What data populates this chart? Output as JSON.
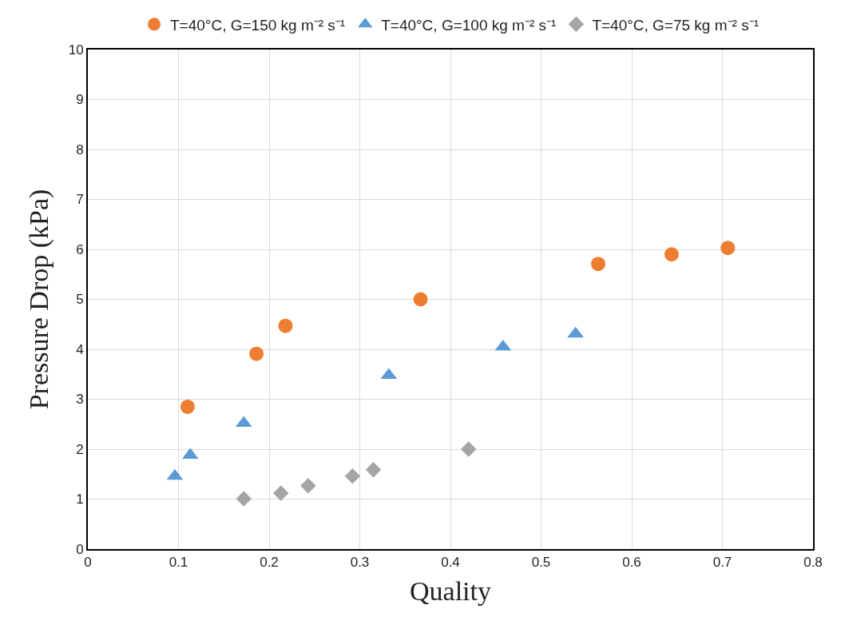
{
  "chart_data": {
    "type": "scatter",
    "xlabel": "Quality",
    "ylabel": "Pressure Drop (kPa)",
    "xlim": [
      0,
      0.8
    ],
    "xticks": [
      0,
      0.1,
      0.2,
      0.3,
      0.4,
      0.5,
      0.6,
      0.7,
      0.8
    ],
    "ylim": [
      0,
      10
    ],
    "yticks": [
      0,
      1,
      2,
      3,
      4,
      5,
      6,
      7,
      8,
      9,
      10
    ],
    "grid": true,
    "legend": "top",
    "series": [
      {
        "name": "T=40°C, G=150 kg m⁻² s⁻¹",
        "color": "#ed7d31",
        "marker": "circle",
        "x": [
          0.11,
          0.186,
          0.218,
          0.367,
          0.563,
          0.644,
          0.706
        ],
        "values": [
          2.85,
          3.91,
          4.47,
          5.0,
          5.71,
          5.9,
          6.03
        ]
      },
      {
        "name": "T=40°C, G=100 kg m⁻² s⁻¹",
        "color": "#5b9bd5",
        "marker": "triangle",
        "x": [
          0.096,
          0.113,
          0.172,
          0.332,
          0.458,
          0.538
        ],
        "values": [
          1.46,
          1.88,
          2.52,
          3.48,
          4.05,
          4.31
        ]
      },
      {
        "name": "T=40°C, G=75 kg m⁻² s⁻¹",
        "color": "#a5a5a5",
        "marker": "diamond",
        "x": [
          0.172,
          0.213,
          0.243,
          0.292,
          0.315,
          0.42
        ],
        "values": [
          1.01,
          1.12,
          1.27,
          1.46,
          1.59,
          2.0
        ]
      }
    ]
  }
}
